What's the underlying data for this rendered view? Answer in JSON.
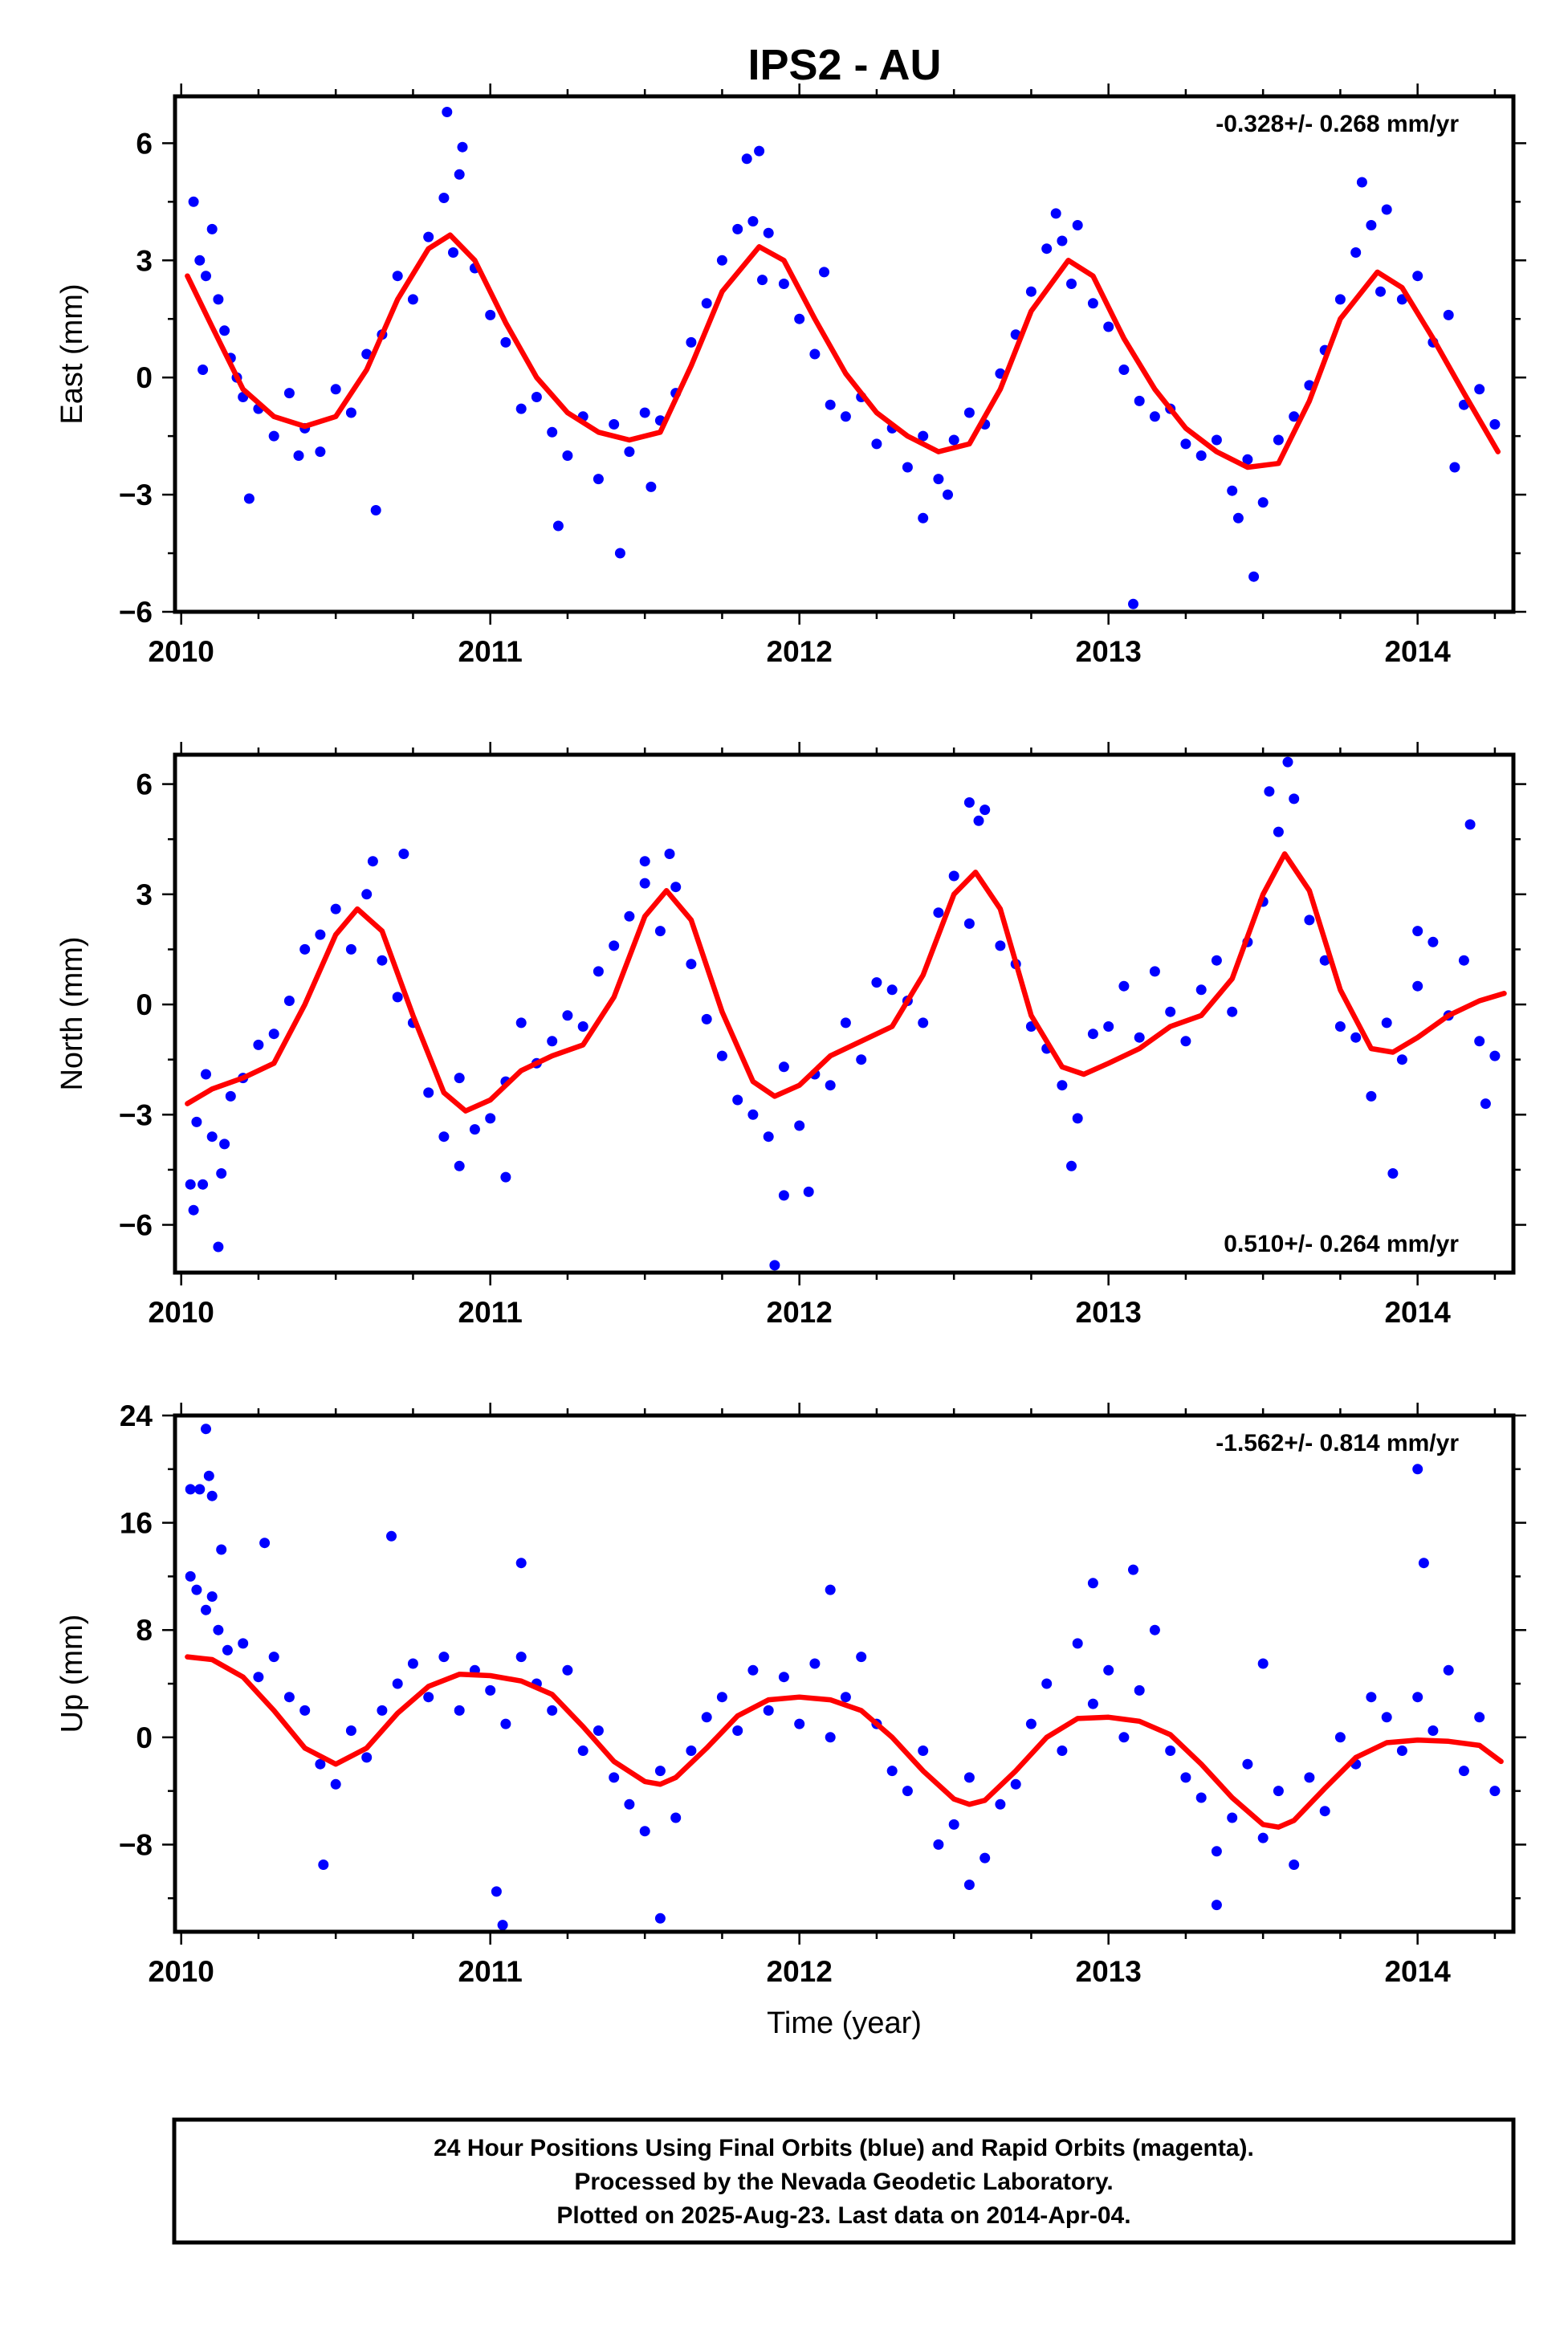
{
  "title": "IPS2 - AU",
  "colors": {
    "points": "#0000ff",
    "fit": "#ff0000"
  },
  "chart_data": [
    {
      "type": "scatter",
      "name": "east",
      "ylabel": "East (mm)",
      "xlabel": "",
      "xlim": [
        2009.98,
        2014.31
      ],
      "ylim": [
        -6,
        7.2
      ],
      "xticks": [
        2010,
        2011,
        2012,
        2013,
        2014
      ],
      "yticks": [
        -6,
        -3,
        0,
        3,
        6
      ],
      "rate_text": "-0.328+/- 0.268 mm/yr",
      "rate_position": "top-right",
      "fit": {
        "x": [
          2010.02,
          2010.1,
          2010.2,
          2010.3,
          2010.4,
          2010.5,
          2010.6,
          2010.7,
          2010.8,
          2010.87,
          2010.95,
          2011.05,
          2011.15,
          2011.25,
          2011.35,
          2011.45,
          2011.55,
          2011.65,
          2011.75,
          2011.87,
          2011.95,
          2012.05,
          2012.15,
          2012.25,
          2012.35,
          2012.45,
          2012.55,
          2012.65,
          2012.75,
          2012.87,
          2012.95,
          2013.05,
          2013.15,
          2013.25,
          2013.35,
          2013.45,
          2013.55,
          2013.65,
          2013.75,
          2013.87,
          2013.95,
          2014.05,
          2014.15,
          2014.26
        ],
        "y": [
          2.6,
          1.3,
          -0.3,
          -1.0,
          -1.25,
          -1.0,
          0.2,
          2.0,
          3.3,
          3.65,
          3.0,
          1.4,
          0.0,
          -0.9,
          -1.4,
          -1.6,
          -1.4,
          0.3,
          2.2,
          3.35,
          3.0,
          1.5,
          0.1,
          -0.9,
          -1.5,
          -1.9,
          -1.7,
          -0.3,
          1.7,
          3.0,
          2.6,
          1.0,
          -0.3,
          -1.3,
          -1.9,
          -2.3,
          -2.2,
          -0.6,
          1.5,
          2.7,
          2.3,
          1.0,
          -0.4,
          -1.9
        ]
      },
      "points": {
        "x": [
          2010.04,
          2010.06,
          2010.08,
          2010.1,
          2010.12,
          2010.14,
          2010.16,
          2010.18,
          2010.2,
          2010.25,
          2010.3,
          2010.35,
          2010.4,
          2010.45,
          2010.5,
          2010.55,
          2010.6,
          2010.65,
          2010.7,
          2010.75,
          2010.8,
          2010.85,
          2010.88,
          2010.9,
          2010.95,
          2011.0,
          2011.05,
          2011.1,
          2011.15,
          2011.2,
          2011.25,
          2011.3,
          2011.35,
          2011.4,
          2011.45,
          2011.5,
          2011.55,
          2011.6,
          2011.65,
          2011.7,
          2011.75,
          2011.8,
          2011.85,
          2011.88,
          2011.9,
          2011.95,
          2012.0,
          2012.05,
          2012.1,
          2012.15,
          2012.2,
          2012.25,
          2012.3,
          2012.35,
          2012.4,
          2012.45,
          2012.5,
          2012.55,
          2012.6,
          2012.65,
          2012.7,
          2012.75,
          2012.8,
          2012.85,
          2012.88,
          2012.9,
          2012.95,
          2013.0,
          2013.05,
          2013.1,
          2013.15,
          2013.2,
          2013.25,
          2013.3,
          2013.35,
          2013.4,
          2013.45,
          2013.5,
          2013.55,
          2013.6,
          2013.65,
          2013.7,
          2013.75,
          2013.8,
          2013.85,
          2013.88,
          2013.9,
          2013.95,
          2014.0,
          2014.05,
          2014.1,
          2014.15,
          2014.2,
          2014.25,
          2010.07,
          2010.22,
          2010.38,
          2010.63,
          2010.86,
          2010.91,
          2011.22,
          2011.42,
          2011.52,
          2011.83,
          2011.87,
          2012.08,
          2012.4,
          2012.48,
          2012.83,
          2013.08,
          2013.42,
          2013.47,
          2013.82,
          2014.12
        ],
        "y": [
          4.5,
          3.0,
          2.6,
          3.8,
          2.0,
          1.2,
          0.5,
          0.0,
          -0.5,
          -0.8,
          -1.5,
          -0.4,
          -1.3,
          -1.9,
          -0.3,
          -0.9,
          0.6,
          1.1,
          2.6,
          2.0,
          3.6,
          4.6,
          3.2,
          5.2,
          2.8,
          1.6,
          0.9,
          -0.8,
          -0.5,
          -1.4,
          -2.0,
          -1.0,
          -2.6,
          -1.2,
          -1.9,
          -0.9,
          -1.1,
          -0.4,
          0.9,
          1.9,
          3.0,
          3.8,
          4.0,
          2.5,
          3.7,
          2.4,
          1.5,
          0.6,
          -0.7,
          -1.0,
          -0.5,
          -1.7,
          -1.3,
          -2.3,
          -1.5,
          -2.6,
          -1.6,
          -0.9,
          -1.2,
          0.1,
          1.1,
          2.2,
          3.3,
          3.5,
          2.4,
          3.9,
          1.9,
          1.3,
          0.2,
          -0.6,
          -1.0,
          -0.8,
          -1.7,
          -2.0,
          -1.6,
          -2.9,
          -2.1,
          -3.2,
          -1.6,
          -1.0,
          -0.2,
          0.7,
          2.0,
          3.2,
          3.9,
          2.2,
          4.3,
          2.0,
          2.6,
          0.9,
          1.6,
          -0.7,
          -0.3,
          -1.2,
          0.2,
          -3.1,
          -2.0,
          -3.4,
          6.8,
          5.9,
          -3.8,
          -4.5,
          -2.8,
          5.6,
          5.8,
          2.7,
          -3.6,
          -3.0,
          4.2,
          -5.8,
          -3.6,
          -5.1,
          5.0,
          -2.3
        ]
      }
    },
    {
      "type": "scatter",
      "name": "north",
      "ylabel": "North (mm)",
      "xlabel": "",
      "xlim": [
        2009.98,
        2014.31
      ],
      "ylim": [
        -7.3,
        6.8
      ],
      "xticks": [
        2010,
        2011,
        2012,
        2013,
        2014
      ],
      "yticks": [
        -6,
        -3,
        0,
        3,
        6
      ],
      "rate_text": "0.510+/- 0.264 mm/yr",
      "rate_position": "bottom-right",
      "fit": {
        "x": [
          2010.02,
          2010.1,
          2010.2,
          2010.3,
          2010.4,
          2010.5,
          2010.57,
          2010.65,
          2010.75,
          2010.85,
          2010.92,
          2011.0,
          2011.1,
          2011.2,
          2011.3,
          2011.4,
          2011.5,
          2011.57,
          2011.65,
          2011.75,
          2011.85,
          2011.92,
          2012.0,
          2012.1,
          2012.2,
          2012.3,
          2012.4,
          2012.5,
          2012.57,
          2012.65,
          2012.75,
          2012.85,
          2012.92,
          2013.0,
          2013.1,
          2013.2,
          2013.3,
          2013.4,
          2013.5,
          2013.57,
          2013.65,
          2013.75,
          2013.85,
          2013.92,
          2014.0,
          2014.1,
          2014.2,
          2014.28
        ],
        "y": [
          -2.7,
          -2.3,
          -2.0,
          -1.6,
          0.0,
          1.9,
          2.6,
          2.0,
          -0.3,
          -2.4,
          -2.9,
          -2.6,
          -1.8,
          -1.4,
          -1.1,
          0.2,
          2.4,
          3.1,
          2.3,
          -0.2,
          -2.1,
          -2.5,
          -2.2,
          -1.4,
          -1.0,
          -0.6,
          0.8,
          3.0,
          3.6,
          2.6,
          -0.3,
          -1.7,
          -1.9,
          -1.6,
          -1.2,
          -0.6,
          -0.3,
          0.7,
          3.0,
          4.1,
          3.1,
          0.4,
          -1.2,
          -1.3,
          -0.9,
          -0.3,
          0.1,
          0.3
        ]
      },
      "points": {
        "x": [
          2010.03,
          2010.05,
          2010.08,
          2010.1,
          2010.13,
          2010.16,
          2010.2,
          2010.25,
          2010.3,
          2010.35,
          2010.4,
          2010.45,
          2010.5,
          2010.55,
          2010.6,
          2010.65,
          2010.7,
          2010.75,
          2010.8,
          2010.85,
          2010.9,
          2010.95,
          2011.0,
          2011.05,
          2011.1,
          2011.15,
          2011.2,
          2011.25,
          2011.3,
          2011.35,
          2011.4,
          2011.45,
          2011.5,
          2011.55,
          2011.6,
          2011.65,
          2011.7,
          2011.75,
          2011.8,
          2011.85,
          2011.9,
          2011.95,
          2012.0,
          2012.05,
          2012.1,
          2012.15,
          2012.2,
          2012.25,
          2012.3,
          2012.35,
          2012.4,
          2012.45,
          2012.5,
          2012.55,
          2012.6,
          2012.65,
          2012.7,
          2012.75,
          2012.8,
          2012.85,
          2012.9,
          2012.95,
          2013.0,
          2013.05,
          2013.1,
          2013.15,
          2013.2,
          2013.25,
          2013.3,
          2013.35,
          2013.4,
          2013.45,
          2013.5,
          2013.55,
          2013.6,
          2013.65,
          2013.7,
          2013.75,
          2013.8,
          2013.85,
          2013.9,
          2013.95,
          2014.0,
          2014.05,
          2014.1,
          2014.15,
          2014.2,
          2014.25,
          2010.04,
          2010.07,
          2010.12,
          2010.14,
          2010.62,
          2010.72,
          2010.9,
          2011.05,
          2011.5,
          2011.58,
          2011.92,
          2011.95,
          2012.03,
          2012.55,
          2012.58,
          2012.88,
          2013.52,
          2013.58,
          2013.92,
          2014.0,
          2014.17,
          2014.22
        ],
        "y": [
          -4.9,
          -3.2,
          -1.9,
          -3.6,
          -4.6,
          -2.5,
          -2.0,
          -1.1,
          -0.8,
          0.1,
          1.5,
          1.9,
          2.6,
          1.5,
          3.0,
          1.2,
          0.2,
          -0.5,
          -2.4,
          -3.6,
          -2.0,
          -3.4,
          -3.1,
          -2.1,
          -0.5,
          -1.6,
          -1.0,
          -0.3,
          -0.6,
          0.9,
          1.6,
          2.4,
          3.3,
          2.0,
          3.2,
          1.1,
          -0.4,
          -1.4,
          -2.6,
          -3.0,
          -3.6,
          -1.7,
          -3.3,
          -1.9,
          -2.2,
          -0.5,
          -1.5,
          0.6,
          0.4,
          0.1,
          -0.5,
          2.5,
          3.5,
          2.2,
          5.3,
          1.6,
          1.1,
          -0.6,
          -1.2,
          -2.2,
          -3.1,
          -0.8,
          -0.6,
          0.5,
          -0.9,
          0.9,
          -0.2,
          -1.0,
          0.4,
          1.2,
          -0.2,
          1.7,
          2.8,
          4.7,
          5.6,
          2.3,
          1.2,
          -0.6,
          -0.9,
          -2.5,
          -0.5,
          -1.5,
          0.5,
          1.7,
          -0.3,
          1.2,
          -1.0,
          -1.4,
          -5.6,
          -4.9,
          -6.6,
          -3.8,
          3.9,
          4.1,
          -4.4,
          -4.7,
          3.9,
          4.1,
          -7.1,
          -5.2,
          -5.1,
          5.5,
          5.0,
          -4.4,
          5.8,
          6.6,
          -4.6,
          2.0,
          4.9,
          -2.7
        ]
      }
    },
    {
      "type": "scatter",
      "name": "up",
      "ylabel": "Up (mm)",
      "xlabel": "Time (year)",
      "xlim": [
        2009.98,
        2014.31
      ],
      "ylim": [
        -14.5,
        24
      ],
      "xticks": [
        2010,
        2011,
        2012,
        2013,
        2014
      ],
      "yticks": [
        -8,
        0,
        8,
        16,
        24
      ],
      "rate_text": "-1.562+/- 0.814 mm/yr",
      "rate_position": "top-right",
      "fit": {
        "x": [
          2010.02,
          2010.1,
          2010.2,
          2010.3,
          2010.4,
          2010.5,
          2010.6,
          2010.7,
          2010.8,
          2010.9,
          2011.0,
          2011.1,
          2011.2,
          2011.3,
          2011.4,
          2011.5,
          2011.55,
          2011.6,
          2011.7,
          2011.8,
          2011.9,
          2012.0,
          2012.1,
          2012.2,
          2012.3,
          2012.4,
          2012.5,
          2012.55,
          2012.6,
          2012.7,
          2012.8,
          2012.9,
          2013.0,
          2013.1,
          2013.2,
          2013.3,
          2013.4,
          2013.5,
          2013.55,
          2013.6,
          2013.7,
          2013.8,
          2013.9,
          2014.0,
          2014.1,
          2014.2,
          2014.27
        ],
        "y": [
          6.0,
          5.8,
          4.5,
          2.0,
          -0.8,
          -2.0,
          -0.8,
          1.8,
          3.8,
          4.7,
          4.6,
          4.2,
          3.2,
          0.8,
          -1.8,
          -3.3,
          -3.5,
          -3.0,
          -0.8,
          1.6,
          2.8,
          3.0,
          2.8,
          2.0,
          0.0,
          -2.5,
          -4.6,
          -5.0,
          -4.7,
          -2.5,
          0.0,
          1.4,
          1.5,
          1.2,
          0.2,
          -2.0,
          -4.5,
          -6.5,
          -6.7,
          -6.2,
          -3.8,
          -1.5,
          -0.4,
          -0.2,
          -0.3,
          -0.6,
          -1.8
        ]
      },
      "points": {
        "x": [
          2010.03,
          2010.05,
          2010.08,
          2010.1,
          2010.12,
          2010.15,
          2010.2,
          2010.25,
          2010.3,
          2010.35,
          2010.4,
          2010.45,
          2010.5,
          2010.55,
          2010.6,
          2010.65,
          2010.7,
          2010.75,
          2010.8,
          2010.85,
          2010.9,
          2010.95,
          2011.0,
          2011.05,
          2011.1,
          2011.15,
          2011.2,
          2011.25,
          2011.3,
          2011.35,
          2011.4,
          2011.45,
          2011.5,
          2011.55,
          2011.6,
          2011.65,
          2011.7,
          2011.75,
          2011.8,
          2011.85,
          2011.9,
          2011.95,
          2012.0,
          2012.05,
          2012.1,
          2012.15,
          2012.2,
          2012.25,
          2012.3,
          2012.35,
          2012.4,
          2012.45,
          2012.5,
          2012.55,
          2012.6,
          2012.65,
          2012.7,
          2012.75,
          2012.8,
          2012.85,
          2012.9,
          2012.95,
          2013.0,
          2013.05,
          2013.1,
          2013.15,
          2013.2,
          2013.25,
          2013.3,
          2013.35,
          2013.4,
          2013.45,
          2013.5,
          2013.55,
          2013.6,
          2013.65,
          2013.7,
          2013.75,
          2013.8,
          2013.85,
          2013.9,
          2013.95,
          2014.0,
          2014.05,
          2014.1,
          2014.15,
          2014.2,
          2014.25,
          2010.03,
          2010.06,
          2010.08,
          2010.09,
          2010.1,
          2010.13,
          2010.27,
          2010.46,
          2010.68,
          2011.02,
          2011.04,
          2011.1,
          2011.55,
          2012.1,
          2012.55,
          2012.95,
          2013.08,
          2013.35,
          2013.5,
          2014.0,
          2014.02
        ],
        "y": [
          12.0,
          11.0,
          9.5,
          10.5,
          8.0,
          6.5,
          7.0,
          4.5,
          6.0,
          3.0,
          2.0,
          -2.0,
          -3.5,
          0.5,
          -1.5,
          2.0,
          4.0,
          5.5,
          3.0,
          6.0,
          2.0,
          5.0,
          3.5,
          1.0,
          6.0,
          4.0,
          2.0,
          5.0,
          -1.0,
          0.5,
          -3.0,
          -5.0,
          -7.0,
          -2.5,
          -6.0,
          -1.0,
          1.5,
          3.0,
          0.5,
          5.0,
          2.0,
          4.5,
          1.0,
          5.5,
          0.0,
          3.0,
          6.0,
          1.0,
          -2.5,
          -4.0,
          -1.0,
          -8.0,
          -6.5,
          -3.0,
          -9.0,
          -5.0,
          -3.5,
          1.0,
          4.0,
          -1.0,
          7.0,
          2.5,
          5.0,
          0.0,
          3.5,
          8.0,
          -1.0,
          -3.0,
          -4.5,
          -8.5,
          -6.0,
          -2.0,
          -7.5,
          -4.0,
          -9.5,
          -3.0,
          -5.5,
          0.0,
          -2.0,
          3.0,
          1.5,
          -1.0,
          3.0,
          0.5,
          5.0,
          -2.5,
          1.5,
          -4.0,
          18.5,
          18.5,
          23.0,
          19.5,
          18.0,
          14.0,
          14.5,
          -9.5,
          15.0,
          -11.5,
          -14.0,
          13.0,
          -13.5,
          11.0,
          -11.0,
          11.5,
          12.5,
          -12.5,
          5.5,
          20.0,
          13.0
        ]
      }
    }
  ],
  "caption": {
    "line1": "24 Hour Positions Using Final Orbits (blue) and Rapid Orbits (magenta).",
    "line2": "Processed by the Nevada Geodetic Laboratory.",
    "line3": "Plotted on 2025-Aug-23. Last data on 2014-Apr-04."
  }
}
